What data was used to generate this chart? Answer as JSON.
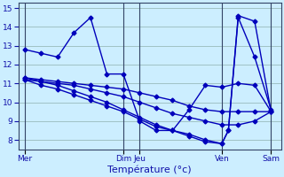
{
  "background_color": "#cceeff",
  "line_color": "#0000bb",
  "marker": "D",
  "markersize": 2.5,
  "linewidth": 1.0,
  "xlabel": "Température (°c)",
  "xlabel_fontsize": 8,
  "ylim": [
    7.5,
    15.3
  ],
  "yticks": [
    8,
    9,
    10,
    11,
    12,
    13,
    14,
    15
  ],
  "ytick_fontsize": 6.5,
  "grid_color": "#99bbbb",
  "grid_linewidth": 0.6,
  "tick_color": "#1111aa",
  "xtick_fontsize": 6.5,
  "series": [
    {
      "x": [
        0,
        0.5,
        1.0,
        1.5,
        2.0,
        2.5,
        3.0,
        3.5,
        4.0,
        4.5,
        5.0,
        5.5,
        6.0,
        6.5,
        7.0,
        7.5
      ],
      "y": [
        12.8,
        12.6,
        12.4,
        13.7,
        14.5,
        11.5,
        11.5,
        9.0,
        8.5,
        8.5,
        9.6,
        10.9,
        10.8,
        11.0,
        10.9,
        9.5
      ]
    },
    {
      "x": [
        0,
        0.5,
        1.0,
        1.5,
        2.0,
        2.5,
        3.0,
        3.5,
        4.0,
        4.5,
        5.0,
        5.5,
        6.0,
        6.5,
        7.0,
        7.5
      ],
      "y": [
        11.3,
        11.2,
        11.1,
        11.0,
        10.9,
        10.8,
        10.7,
        10.5,
        10.3,
        10.1,
        9.8,
        9.6,
        9.5,
        9.5,
        9.5,
        9.5
      ]
    },
    {
      "x": [
        0,
        0.5,
        1.0,
        1.5,
        2.0,
        2.5,
        3.0,
        3.5,
        4.0,
        4.5,
        5.0,
        5.5,
        6.0,
        6.5,
        7.0,
        7.5
      ],
      "y": [
        11.2,
        11.1,
        11.0,
        10.9,
        10.7,
        10.5,
        10.3,
        10.0,
        9.7,
        9.4,
        9.2,
        9.0,
        8.8,
        8.8,
        9.0,
        9.5
      ]
    },
    {
      "x": [
        0,
        0.5,
        1.0,
        1.5,
        2.0,
        2.5,
        3.0,
        3.5,
        4.0,
        4.5,
        5.0,
        5.5,
        6.0,
        6.2,
        6.5,
        7.0,
        7.5
      ],
      "y": [
        11.3,
        11.1,
        10.9,
        10.6,
        10.3,
        10.0,
        9.6,
        9.2,
        8.8,
        8.5,
        8.2,
        7.9,
        7.8,
        8.5,
        14.6,
        14.3,
        9.5
      ]
    },
    {
      "x": [
        0,
        0.5,
        1.0,
        1.5,
        2.0,
        2.5,
        3.0,
        3.5,
        4.0,
        4.5,
        5.0,
        5.5,
        6.0,
        6.2,
        6.5,
        7.0,
        7.5
      ],
      "y": [
        11.2,
        10.9,
        10.7,
        10.4,
        10.1,
        9.8,
        9.5,
        9.1,
        8.7,
        8.5,
        8.3,
        8.0,
        7.8,
        8.5,
        14.5,
        12.4,
        9.6
      ]
    }
  ],
  "vlines": [
    {
      "x": 0.0,
      "color": "#334466",
      "lw": 0.8
    },
    {
      "x": 3.0,
      "color": "#334466",
      "lw": 0.8
    },
    {
      "x": 3.5,
      "color": "#334466",
      "lw": 0.8
    },
    {
      "x": 6.0,
      "color": "#334466",
      "lw": 0.8
    },
    {
      "x": 7.5,
      "color": "#334466",
      "lw": 0.8
    }
  ],
  "xtick_positions": [
    0.0,
    3.0,
    3.5,
    6.0,
    7.5
  ],
  "xtick_labels": [
    "Mer",
    "Dim",
    "Jeu",
    "Ven",
    "Sam"
  ],
  "xlim": [
    -0.2,
    7.8
  ]
}
